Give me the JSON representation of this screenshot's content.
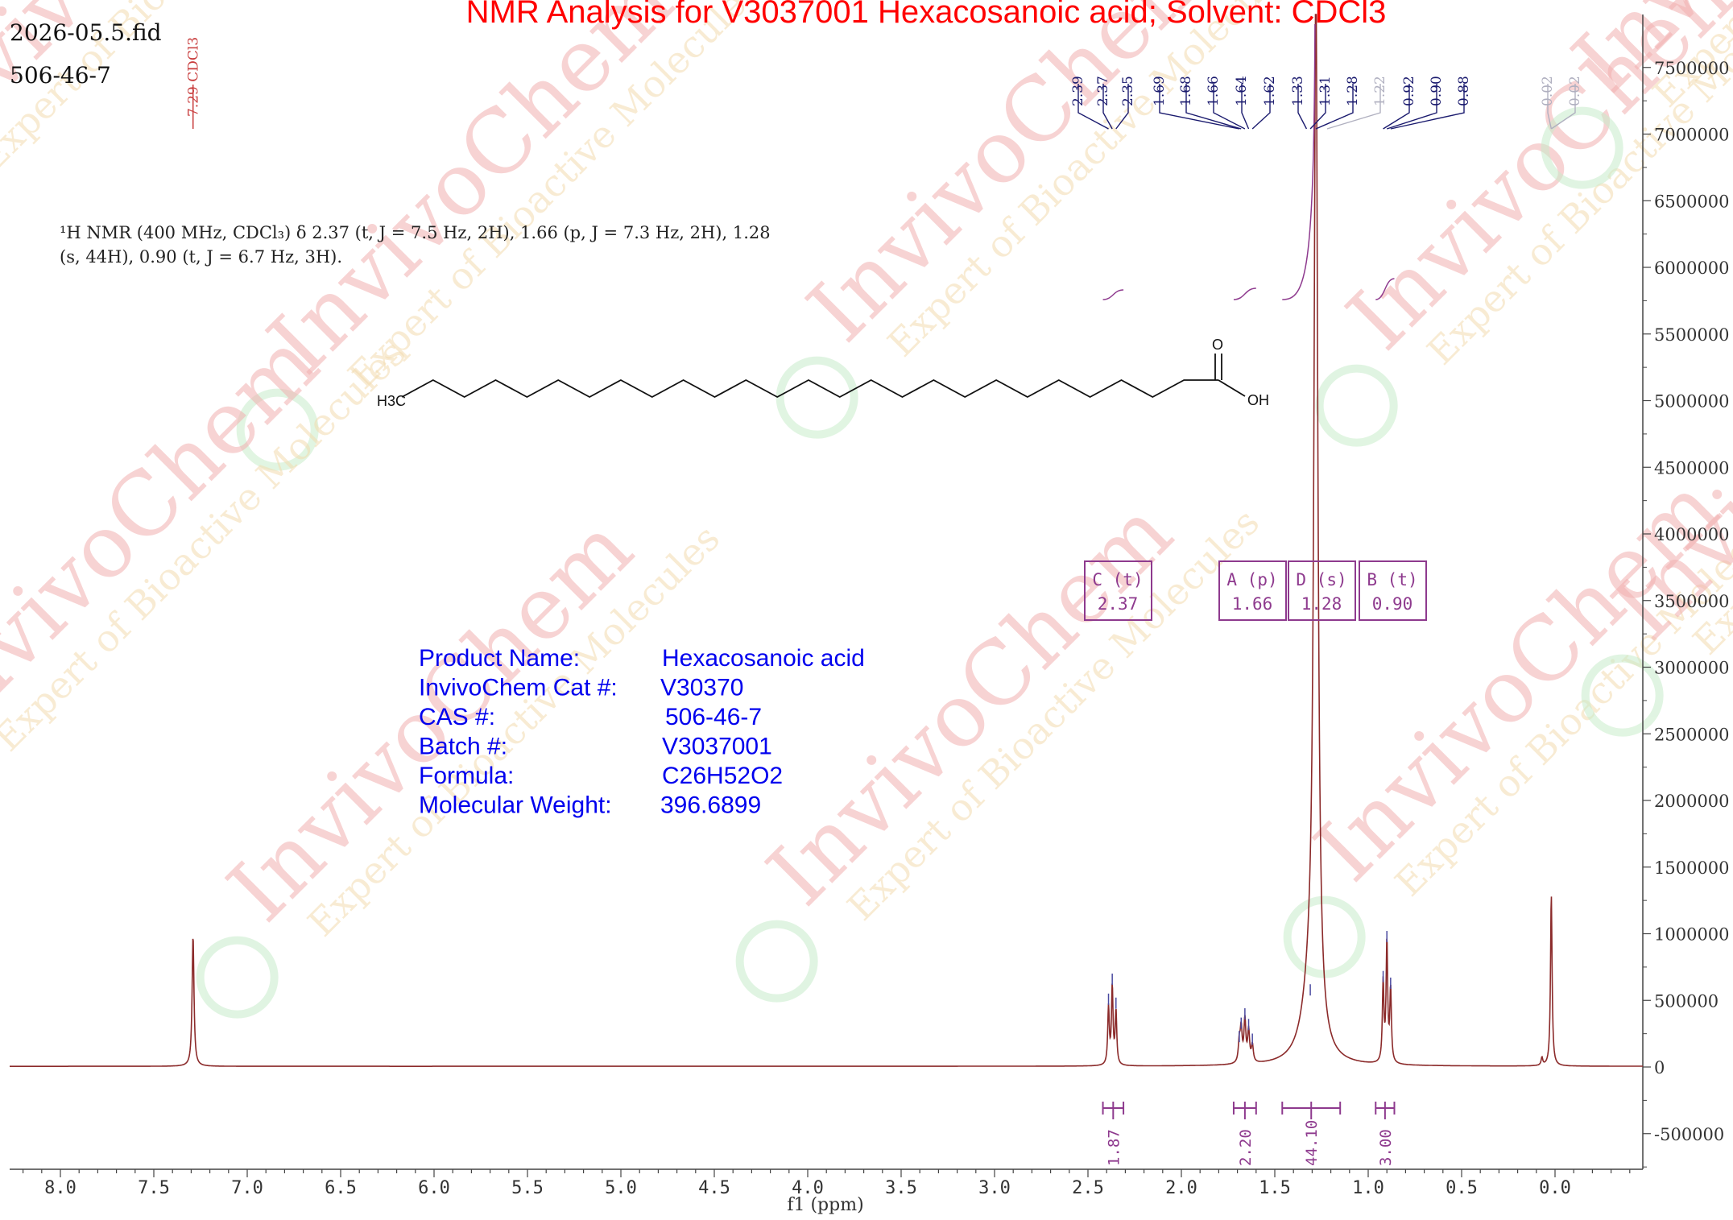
{
  "header": {
    "title": "NMR Analysis for V3037001 Hexacosanoic acid; Solvent: CDCl3",
    "file_name": "2026-05.5.fid",
    "cas_line": "506-46-7"
  },
  "nmr_description": {
    "line1": "¹H NMR (400 MHz, CDCl₃) δ 2.37 (t, J = 7.5 Hz, 2H), 1.66 (p, J = 7.3 Hz, 2H), 1.28",
    "line2": "(s, 44H), 0.90 (t, J = 6.7 Hz, 3H)."
  },
  "structure": {
    "left_label": "H3C",
    "carbonyl_label": "O",
    "acid_label": "OH"
  },
  "product_info": [
    {
      "label": "Product Name:",
      "value": "Hexacosanoic acid"
    },
    {
      "label": "InvivoChem Cat #:",
      "value": "V30370"
    },
    {
      "label": "CAS #:",
      "value": "506-46-7"
    },
    {
      "label": "Batch #:",
      "value": "V3037001"
    },
    {
      "label": "Formula:",
      "value": "C26H52O2"
    },
    {
      "label": "Molecular Weight:",
      "value": "396.6899"
    }
  ],
  "watermark": {
    "brand": "InvivoChem",
    "tagline": "Expert of Bioactive Molecules"
  },
  "colors": {
    "spectrum": "#8b2a2a",
    "title": "#ff0000",
    "info": "#0000ee",
    "peak_label": "#1a1a6e",
    "peak_label_faint": "#b0b0c0",
    "multiplet": "#8e3a8e",
    "integral": "#8e3a8e",
    "solvent_label": "#c83c3c",
    "watermark_red": "#f2b0b0",
    "watermark_green": "#c8eccb"
  },
  "chart_data": {
    "type": "line",
    "title": "NMR Analysis for V3037001 Hexacosanoic acid; Solvent: CDCl3",
    "xlabel": "f1 (ppm)",
    "ylabel": "",
    "x_reversed": true,
    "xlim": [
      8.2,
      -0.45
    ],
    "ylim": [
      -850000,
      7900000
    ],
    "x_ticks": [
      "8.0",
      "7.5",
      "7.0",
      "6.5",
      "6.0",
      "5.5",
      "5.0",
      "4.5",
      "4.0",
      "3.5",
      "3.0",
      "2.5",
      "2.0",
      "1.5",
      "1.0",
      "0.5",
      "0.0"
    ],
    "x_tick_values": [
      8.0,
      7.5,
      7.0,
      6.5,
      6.0,
      5.5,
      5.0,
      4.5,
      4.0,
      3.5,
      3.0,
      2.5,
      2.0,
      1.5,
      1.0,
      0.5,
      0.0
    ],
    "y_ticks": [
      -500000,
      0,
      500000,
      1000000,
      1500000,
      2000000,
      2500000,
      3000000,
      3500000,
      4000000,
      4500000,
      5000000,
      5500000,
      6000000,
      6500000,
      7000000,
      7500000
    ],
    "y_tick_labels": [
      "-500000",
      "0",
      "500000",
      "1000000",
      "1500000",
      "2000000",
      "2500000",
      "3000000",
      "3500000",
      "4000000",
      "4500000",
      "5000000",
      "5500000",
      "6000000",
      "6500000",
      "7000000",
      "7500000"
    ],
    "peaks": [
      {
        "ppm": 7.29,
        "height": 980000,
        "width": 0.006
      },
      {
        "ppm": 2.39,
        "height": 430000,
        "width": 0.005
      },
      {
        "ppm": 2.37,
        "height": 580000,
        "width": 0.005
      },
      {
        "ppm": 2.35,
        "height": 400000,
        "width": 0.005
      },
      {
        "ppm": 1.69,
        "height": 150000,
        "width": 0.006
      },
      {
        "ppm": 1.68,
        "height": 250000,
        "width": 0.006
      },
      {
        "ppm": 1.66,
        "height": 320000,
        "width": 0.006
      },
      {
        "ppm": 1.64,
        "height": 240000,
        "width": 0.006
      },
      {
        "ppm": 1.62,
        "height": 130000,
        "width": 0.006
      },
      {
        "ppm": 1.28,
        "height": 7800000,
        "width": 0.012
      },
      {
        "ppm": 1.31,
        "height": 500000,
        "width": 0.05
      },
      {
        "ppm": 0.92,
        "height": 600000,
        "width": 0.005
      },
      {
        "ppm": 0.9,
        "height": 900000,
        "width": 0.005
      },
      {
        "ppm": 0.88,
        "height": 550000,
        "width": 0.005
      },
      {
        "ppm": 0.07,
        "height": 60000,
        "width": 0.005
      },
      {
        "ppm": 0.02,
        "height": 1290000,
        "width": 0.005
      }
    ],
    "peak_labels": [
      "2.39",
      "2.37",
      "2.35",
      "1.69",
      "1.68",
      "1.66",
      "1.64",
      "1.62",
      "1.33",
      "1.31",
      "1.28",
      "1.22",
      "0.92",
      "0.90",
      "0.88",
      "0.02",
      "0.02"
    ],
    "peak_label_ppm": [
      2.39,
      2.37,
      2.35,
      1.69,
      1.68,
      1.66,
      1.64,
      1.62,
      1.33,
      1.31,
      1.28,
      1.22,
      0.92,
      0.9,
      0.88,
      0.02,
      0.02
    ],
    "solvent_label": "7.29 CDCl3",
    "solvent_ppm": 7.29,
    "multiplets": [
      {
        "name": "C (t)",
        "shift": "2.37",
        "ppm": 2.37
      },
      {
        "name": "A (p)",
        "shift": "1.66",
        "ppm": 1.66
      },
      {
        "name": "D (s)",
        "shift": "1.28",
        "ppm": 1.28
      },
      {
        "name": "B (t)",
        "shift": "0.90",
        "ppm": 0.9
      }
    ],
    "integrals": [
      {
        "value": "1.87",
        "from": 2.42,
        "to": 2.31
      },
      {
        "value": "2.20",
        "from": 1.72,
        "to": 1.6
      },
      {
        "value": "44.10",
        "from": 1.46,
        "to": 1.15
      },
      {
        "value": "3.00",
        "from": 0.96,
        "to": 0.86
      }
    ],
    "grid": false,
    "legend": "none"
  }
}
